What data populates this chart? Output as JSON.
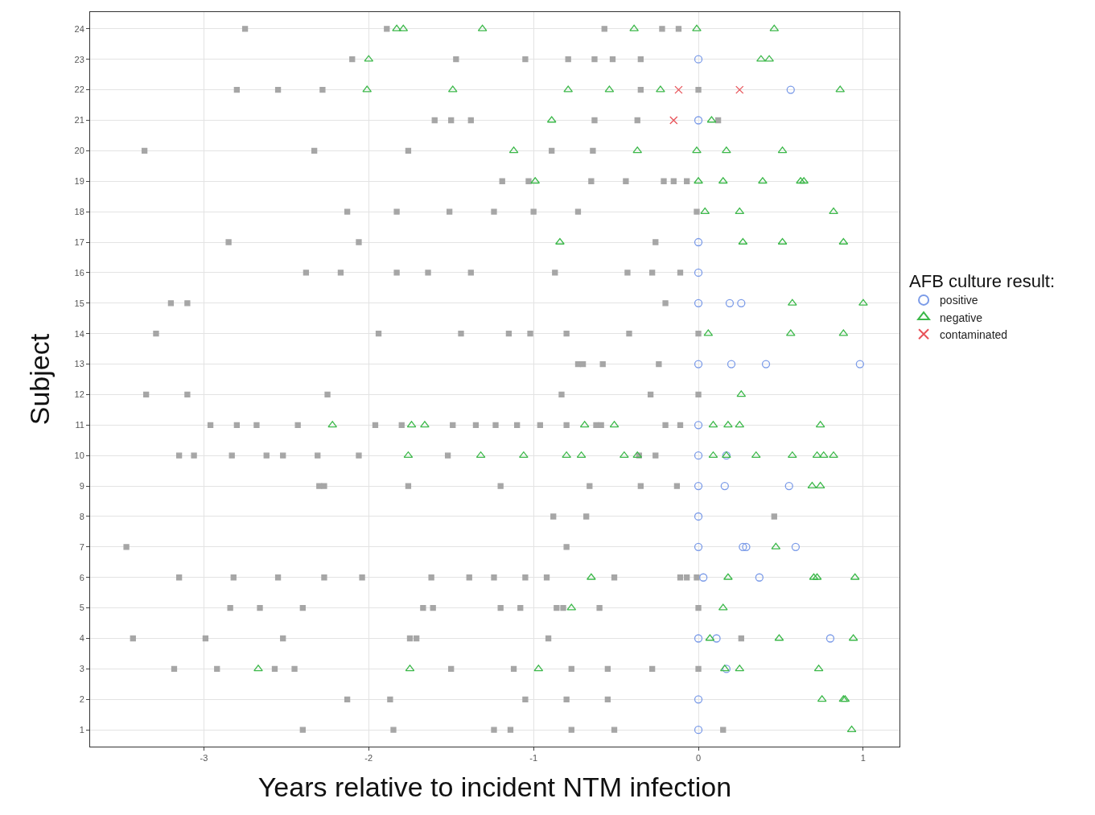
{
  "chart_data": {
    "type": "scatter",
    "xlabel": "Years relative to incident NTM infection",
    "ylabel": "Subject",
    "legend_title": "AFB culture result:",
    "legend": "right",
    "grid": true,
    "xlim": [
      -3.69,
      1.22
    ],
    "xticks": [
      -3,
      -2,
      -1,
      0,
      1
    ],
    "ylim": [
      0.45,
      24.55
    ],
    "yticks": [
      1,
      2,
      3,
      4,
      5,
      6,
      7,
      8,
      9,
      10,
      11,
      12,
      13,
      14,
      15,
      16,
      17,
      18,
      19,
      20,
      21,
      22,
      23,
      24
    ],
    "series": [
      {
        "color": "#a6a6a6",
        "marker": "square",
        "x": [
          -2.75,
          -1.89,
          -0.57,
          -0.22,
          -0.12,
          -2.1,
          -1.47,
          -1.05,
          -0.79,
          -0.63,
          -0.52,
          -0.35,
          -2.8,
          -2.55,
          -2.28,
          -0.35,
          0,
          -1.6,
          -1.5,
          -1.38,
          -0.63,
          -0.37,
          0.12,
          -3.36,
          -2.33,
          -1.76,
          -0.89,
          -0.64,
          -1.19,
          -1.03,
          -0.65,
          -0.44,
          -0.21,
          -0.15,
          -0.07,
          -2.13,
          -1.83,
          -1.51,
          -1.24,
          -1.0,
          -0.73,
          -0.01,
          -2.85,
          -2.06,
          -0.26,
          -2.38,
          -2.17,
          -1.83,
          -1.64,
          -1.38,
          -0.87,
          -0.43,
          -0.28,
          -0.11,
          -3.2,
          -3.1,
          -0.2,
          -3.29,
          -1.94,
          -1.44,
          -1.15,
          -1.02,
          -0.8,
          -0.42,
          0,
          -0.73,
          -0.7,
          -0.58,
          -0.24,
          -3.35,
          -3.1,
          -2.25,
          -0.83,
          -0.29,
          0,
          -2.96,
          -2.8,
          -2.68,
          -2.43,
          -1.96,
          -1.8,
          -1.49,
          -1.35,
          -1.23,
          -1.1,
          -0.96,
          -0.8,
          -0.62,
          -0.59,
          -0.2,
          -0.11,
          -3.15,
          -3.06,
          -2.83,
          -2.62,
          -2.52,
          -2.31,
          -2.06,
          -1.52,
          -0.36,
          -0.26,
          -2.3,
          -2.27,
          -1.76,
          -1.2,
          -0.66,
          -0.35,
          -0.13,
          -0.88,
          -0.68,
          0.46,
          -3.47,
          -0.8,
          -3.15,
          -2.82,
          -2.55,
          -2.27,
          -2.04,
          -1.62,
          -1.39,
          -1.24,
          -1.05,
          -0.92,
          -0.51,
          -0.11,
          -0.07,
          -0.01,
          -2.84,
          -2.66,
          -2.4,
          -1.67,
          -1.61,
          -1.2,
          -1.08,
          -0.86,
          -0.82,
          -0.6,
          0,
          -3.43,
          -2.99,
          -2.52,
          -1.75,
          -1.71,
          -0.91,
          0.26,
          -3.18,
          -2.92,
          -2.57,
          -2.45,
          -1.5,
          -1.12,
          -0.77,
          -0.55,
          -0.28,
          0,
          -2.13,
          -1.87,
          -1.05,
          -0.8,
          -0.55,
          -2.4,
          -1.85,
          -1.24,
          -1.14,
          -0.77,
          -0.51,
          0.15
        ],
        "values": [
          24,
          24,
          24,
          24,
          24,
          23,
          23,
          23,
          23,
          23,
          23,
          23,
          22,
          22,
          22,
          22,
          22,
          21,
          21,
          21,
          21,
          21,
          21,
          20,
          20,
          20,
          20,
          20,
          19,
          19,
          19,
          19,
          19,
          19,
          19,
          18,
          18,
          18,
          18,
          18,
          18,
          18,
          17,
          17,
          17,
          16,
          16,
          16,
          16,
          16,
          16,
          16,
          16,
          16,
          15,
          15,
          15,
          14,
          14,
          14,
          14,
          14,
          14,
          14,
          14,
          13,
          13,
          13,
          13,
          12,
          12,
          12,
          12,
          12,
          12,
          11,
          11,
          11,
          11,
          11,
          11,
          11,
          11,
          11,
          11,
          11,
          11,
          11,
          11,
          11,
          11,
          10,
          10,
          10,
          10,
          10,
          10,
          10,
          10,
          10,
          10,
          9,
          9,
          9,
          9,
          9,
          9,
          9,
          8,
          8,
          8,
          7,
          7,
          6,
          6,
          6,
          6,
          6,
          6,
          6,
          6,
          6,
          6,
          6,
          6,
          6,
          6,
          5,
          5,
          5,
          5,
          5,
          5,
          5,
          5,
          5,
          5,
          5,
          4,
          4,
          4,
          4,
          4,
          4,
          4,
          3,
          3,
          3,
          3,
          3,
          3,
          3,
          3,
          3,
          3,
          2,
          2,
          2,
          2,
          2,
          1,
          1,
          1,
          1,
          1,
          1,
          1
        ]
      },
      {
        "name": "positive",
        "color": "#7b9be8",
        "marker": "circle",
        "x": [
          0,
          0.56,
          0,
          0,
          0,
          0,
          0.19,
          0.26,
          0,
          0.2,
          0.41,
          0.98,
          0,
          0,
          0.17,
          0,
          0.16,
          0.55,
          0,
          0,
          0.27,
          0.29,
          0.59,
          0.03,
          0.37,
          0,
          0.11,
          0.8,
          0.17,
          0,
          0
        ],
        "values": [
          23,
          22,
          21,
          17,
          16,
          15,
          15,
          15,
          13,
          13,
          13,
          13,
          11,
          10,
          10,
          9,
          9,
          9,
          8,
          7,
          7,
          7,
          7,
          6,
          6,
          4,
          4,
          4,
          3,
          2,
          1
        ]
      },
      {
        "name": "negative",
        "color": "#3cb84a",
        "marker": "triangle",
        "x": [
          -1.83,
          -1.79,
          -1.31,
          -0.39,
          -0.01,
          0.46,
          -2.0,
          0.38,
          0.43,
          -2.01,
          -1.49,
          -0.79,
          -0.54,
          -0.23,
          0.86,
          -0.89,
          0.08,
          -1.12,
          -0.37,
          -0.01,
          0.17,
          0.51,
          -0.99,
          0,
          0.15,
          0.39,
          0.62,
          0.64,
          0.04,
          0.25,
          0.82,
          -0.84,
          0.27,
          0.51,
          0.88,
          0.57,
          1.0,
          0.06,
          0.56,
          0.88,
          0.26,
          -2.22,
          -1.74,
          -1.66,
          -0.69,
          -0.51,
          0.09,
          0.18,
          0.25,
          0.74,
          -1.76,
          -1.32,
          -1.06,
          -0.8,
          -0.71,
          -0.45,
          -0.37,
          0.09,
          0.17,
          0.35,
          0.57,
          0.72,
          0.76,
          0.82,
          0.69,
          0.74,
          0.47,
          -0.65,
          0.18,
          0.7,
          0.72,
          0.95,
          -0.77,
          0.15,
          0.07,
          0.49,
          0.94,
          -2.67,
          -1.75,
          -0.97,
          0.16,
          0.25,
          0.73,
          0.75,
          0.88,
          0.89,
          0.93
        ],
        "values": [
          24,
          24,
          24,
          24,
          24,
          24,
          23,
          23,
          23,
          22,
          22,
          22,
          22,
          22,
          22,
          21,
          21,
          20,
          20,
          20,
          20,
          20,
          19,
          19,
          19,
          19,
          19,
          19,
          18,
          18,
          18,
          17,
          17,
          17,
          17,
          15,
          15,
          14,
          14,
          14,
          12,
          11,
          11,
          11,
          11,
          11,
          11,
          11,
          11,
          11,
          10,
          10,
          10,
          10,
          10,
          10,
          10,
          10,
          10,
          10,
          10,
          10,
          10,
          10,
          9,
          9,
          7,
          6,
          6,
          6,
          6,
          6,
          5,
          5,
          4,
          4,
          4,
          3,
          3,
          3,
          3,
          3,
          3,
          2,
          2,
          2,
          1
        ]
      },
      {
        "name": "contaminated",
        "color": "#e8545a",
        "marker": "cross",
        "x": [
          -0.12,
          0.25,
          -0.15
        ],
        "values": [
          22,
          22,
          21
        ]
      }
    ]
  }
}
